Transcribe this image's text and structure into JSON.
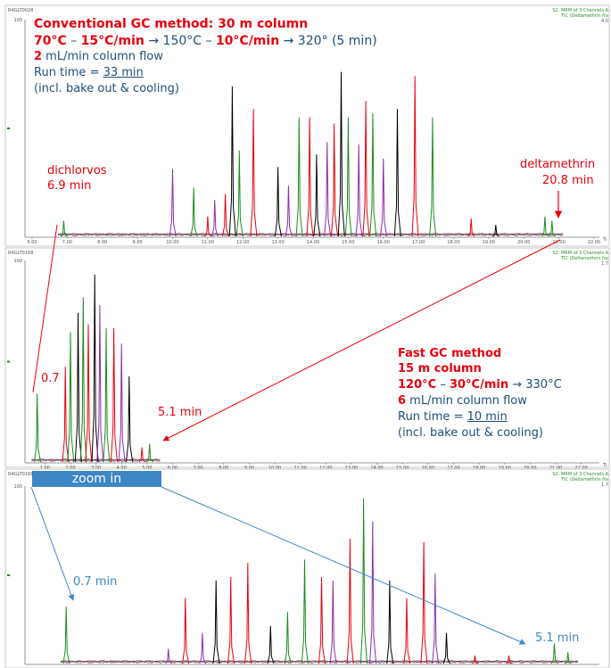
{
  "chart_data": [
    {
      "type": "line",
      "panel": "top",
      "run_id": "R4GLT0028",
      "corner_info": [
        "S2: MRM of 3 Channels A",
        "TIC (Deltamethrin fra",
        "4.0"
      ],
      "x_ticks": [
        "6.00",
        "7.00",
        "8.00",
        "9.00",
        "10.00",
        "11.00",
        "12.00",
        "13.00",
        "14.00",
        "15.00",
        "16.00",
        "17.00",
        "18.00",
        "19.00",
        "20.00",
        "21.00",
        "22.00"
      ],
      "x_range": [
        6.0,
        22.0
      ],
      "y_ticks": [
        "100"
      ],
      "x_unit": "Ti",
      "peaks": [
        {
          "t": 6.9,
          "h": 0.08,
          "c": "#1a8c1a"
        },
        {
          "t": 10.0,
          "h": 0.33,
          "c": "#8e2bb0"
        },
        {
          "t": 10.6,
          "h": 0.24,
          "c": "#1a8c1a"
        },
        {
          "t": 11.0,
          "h": 0.1,
          "c": "#e8000e"
        },
        {
          "t": 11.2,
          "h": 0.18,
          "c": "#8e2bb0"
        },
        {
          "t": 11.5,
          "h": 0.21,
          "c": "#e8000e"
        },
        {
          "t": 11.7,
          "h": 0.73,
          "c": "#000000"
        },
        {
          "t": 11.9,
          "h": 0.42,
          "c": "#1a8c1a"
        },
        {
          "t": 12.3,
          "h": 0.62,
          "c": "#e8000e"
        },
        {
          "t": 13.0,
          "h": 0.34,
          "c": "#000000"
        },
        {
          "t": 13.3,
          "h": 0.25,
          "c": "#8e2bb0"
        },
        {
          "t": 13.6,
          "h": 0.58,
          "c": "#1a8c1a"
        },
        {
          "t": 13.9,
          "h": 0.58,
          "c": "#e8000e"
        },
        {
          "t": 14.1,
          "h": 0.4,
          "c": "#000000"
        },
        {
          "t": 14.4,
          "h": 0.46,
          "c": "#8e2bb0"
        },
        {
          "t": 14.6,
          "h": 0.55,
          "c": "#e8000e"
        },
        {
          "t": 14.8,
          "h": 0.8,
          "c": "#000000"
        },
        {
          "t": 15.0,
          "h": 0.58,
          "c": "#1a8c1a"
        },
        {
          "t": 15.3,
          "h": 0.45,
          "c": "#8e2bb0"
        },
        {
          "t": 15.5,
          "h": 0.66,
          "c": "#e8000e"
        },
        {
          "t": 15.7,
          "h": 0.6,
          "c": "#1a8c1a"
        },
        {
          "t": 16.0,
          "h": 0.38,
          "c": "#8e2bb0"
        },
        {
          "t": 16.4,
          "h": 0.62,
          "c": "#000000"
        },
        {
          "t": 16.9,
          "h": 0.78,
          "c": "#e8000e"
        },
        {
          "t": 17.4,
          "h": 0.58,
          "c": "#1a8c1a"
        },
        {
          "t": 18.5,
          "h": 0.09,
          "c": "#e8000e"
        },
        {
          "t": 19.2,
          "h": 0.06,
          "c": "#000000"
        },
        {
          "t": 20.6,
          "h": 0.1,
          "c": "#1a8c1a"
        },
        {
          "t": 20.8,
          "h": 0.08,
          "c": "#1a8c1a"
        }
      ]
    },
    {
      "type": "line",
      "panel": "middle",
      "run_id": "R4GLT0168",
      "corner_info": [
        "S2: MRM of 3 Channels A",
        "TIC (Deltamethrin fra",
        "1.7"
      ],
      "x_ticks": [
        "1.00",
        "2.00",
        "3.00",
        "4.00",
        "5.00",
        "6.00",
        "7.00",
        "8.00",
        "9.00",
        "10.00",
        "11.00",
        "12.00",
        "13.00",
        "14.00",
        "15.00",
        "16.00",
        "17.00",
        "18.00",
        "19.00",
        "20.00",
        "21.00",
        "22.00"
      ],
      "x_range": [
        0.5,
        22.5
      ],
      "y_ticks": [
        "100"
      ],
      "x_unit": "Ti",
      "peaks": [
        {
          "t": 0.7,
          "h": 0.36,
          "c": "#1a8c1a"
        },
        {
          "t": 1.8,
          "h": 0.5,
          "c": "#e8000e"
        },
        {
          "t": 2.0,
          "h": 0.68,
          "c": "#1a8c1a"
        },
        {
          "t": 2.3,
          "h": 0.78,
          "c": "#000000"
        },
        {
          "t": 2.5,
          "h": 0.86,
          "c": "#1a8c1a"
        },
        {
          "t": 2.7,
          "h": 0.72,
          "c": "#e8000e"
        },
        {
          "t": 2.95,
          "h": 0.98,
          "c": "#000000"
        },
        {
          "t": 3.15,
          "h": 0.82,
          "c": "#8e2bb0"
        },
        {
          "t": 3.4,
          "h": 0.7,
          "c": "#1a8c1a"
        },
        {
          "t": 3.7,
          "h": 0.7,
          "c": "#e8000e"
        },
        {
          "t": 4.0,
          "h": 0.62,
          "c": "#8e2bb0"
        },
        {
          "t": 4.3,
          "h": 0.45,
          "c": "#000000"
        },
        {
          "t": 4.8,
          "h": 0.08,
          "c": "#e8000e"
        },
        {
          "t": 5.1,
          "h": 0.1,
          "c": "#1a8c1a"
        }
      ]
    },
    {
      "type": "line",
      "panel": "bottom",
      "run_id": "R4GLT0168",
      "corner_info": [
        "S2: MRM of 3 Channels A",
        "TIC (Deltamethrin fra",
        "1.7"
      ],
      "x_range": [
        0.4,
        5.35
      ],
      "y_ticks": [
        "100"
      ],
      "peaks": [
        {
          "t": 0.7,
          "h": 0.33,
          "c": "#1a8c1a"
        },
        {
          "t": 1.6,
          "h": 0.09,
          "c": "#8e2bb0"
        },
        {
          "t": 1.75,
          "h": 0.38,
          "c": "#e8000e"
        },
        {
          "t": 1.9,
          "h": 0.18,
          "c": "#8e2bb0"
        },
        {
          "t": 2.02,
          "h": 0.48,
          "c": "#000000"
        },
        {
          "t": 2.15,
          "h": 0.5,
          "c": "#e8000e"
        },
        {
          "t": 2.3,
          "h": 0.58,
          "c": "#e8000e"
        },
        {
          "t": 2.5,
          "h": 0.22,
          "c": "#000000"
        },
        {
          "t": 2.65,
          "h": 0.3,
          "c": "#1a8c1a"
        },
        {
          "t": 2.8,
          "h": 0.6,
          "c": "#1a8c1a"
        },
        {
          "t": 2.95,
          "h": 0.5,
          "c": "#e8000e"
        },
        {
          "t": 3.05,
          "h": 0.48,
          "c": "#8e2bb0"
        },
        {
          "t": 3.2,
          "h": 0.72,
          "c": "#e8000e"
        },
        {
          "t": 3.32,
          "h": 0.95,
          "c": "#1a8c1a"
        },
        {
          "t": 3.4,
          "h": 0.82,
          "c": "#8e2bb0"
        },
        {
          "t": 3.55,
          "h": 0.48,
          "c": "#000000"
        },
        {
          "t": 3.7,
          "h": 0.38,
          "c": "#e8000e"
        },
        {
          "t": 3.85,
          "h": 0.7,
          "c": "#e8000e"
        },
        {
          "t": 3.95,
          "h": 0.52,
          "c": "#8e2bb0"
        },
        {
          "t": 4.05,
          "h": 0.18,
          "c": "#000000"
        },
        {
          "t": 4.3,
          "h": 0.05,
          "c": "#e8000e"
        },
        {
          "t": 4.6,
          "h": 0.05,
          "c": "#e8000e"
        },
        {
          "t": 5.0,
          "h": 0.12,
          "c": "#1a8c1a"
        },
        {
          "t": 5.12,
          "h": 0.07,
          "c": "#1a8c1a"
        }
      ]
    }
  ],
  "annotations": {
    "conventional": {
      "title": "Conventional GC method: 30 m column",
      "temp_a": "70°C",
      "temp_sep1": " – ",
      "temp_b": "15°C/min",
      "temp_arrow1": " → 150°C – ",
      "temp_c": "10°C/min",
      "temp_arrow2": " → 320° (5 min)",
      "flow_num": "2",
      "flow_text": " mL/min column flow",
      "runtime_prefix": "Run time = ",
      "runtime_value": "33 min",
      "bake": "(incl. bake out & cooling)"
    },
    "dichlorvos": {
      "name": "dichlorvos",
      "time": "6.9 min"
    },
    "deltamethrin": {
      "name": "deltamethrin",
      "time": "20.8 min"
    },
    "fast": {
      "title": "Fast GC method",
      "column": "15 m column",
      "temp_a": "120°C",
      "temp_sep": " – ",
      "temp_b": "30°C/min",
      "temp_end": " → 330°C",
      "flow_num": "6",
      "flow_text": " mL/min column flow",
      "runtime_prefix": "Run time = ",
      "runtime_value": "10 min",
      "bake": "(incl. bake out & cooling)"
    },
    "mid_first": "0.7",
    "mid_last": "5.1 min",
    "zoom": "zoom in",
    "bot_first": "0.7 min",
    "bot_last": "5.1 min"
  }
}
